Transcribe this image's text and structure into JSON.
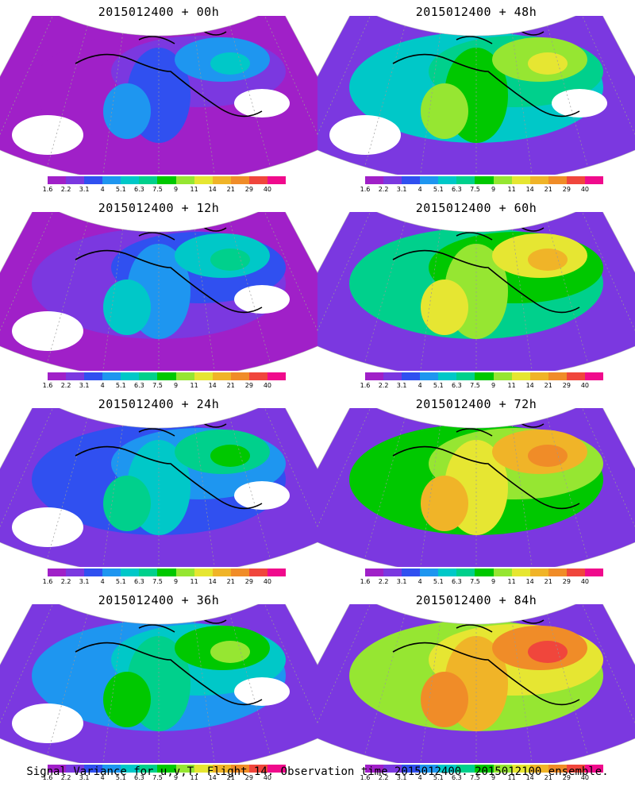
{
  "panels": [
    {
      "title": "2015012400 + 00h",
      "level": 0
    },
    {
      "title": "2015012400 + 48h",
      "level": 4
    },
    {
      "title": "2015012400 + 12h",
      "level": 1
    },
    {
      "title": "2015012400 + 60h",
      "level": 5
    },
    {
      "title": "2015012400 + 24h",
      "level": 2
    },
    {
      "title": "2015012400 + 72h",
      "level": 6
    },
    {
      "title": "2015012400 + 36h",
      "level": 3
    },
    {
      "title": "2015012400 + 84h",
      "level": 7
    }
  ],
  "colorbar": {
    "labels": [
      "1.6",
      "2.2",
      "3.1",
      "4",
      "5.1",
      "6.3",
      "7.5",
      "9",
      "11",
      "14",
      "21",
      "29",
      "40"
    ],
    "colors": [
      "#a020c8",
      "#7b38e0",
      "#3050f0",
      "#1e96f0",
      "#00c8c8",
      "#00d08c",
      "#00c800",
      "#96e632",
      "#e6e632",
      "#f0b428",
      "#f08c28",
      "#f0463c",
      "#f00a8c"
    ]
  },
  "caption": "Signal Variance for u,v,T. Flight 14. Observation time 2015012400. 2015012100 ensemble."
}
